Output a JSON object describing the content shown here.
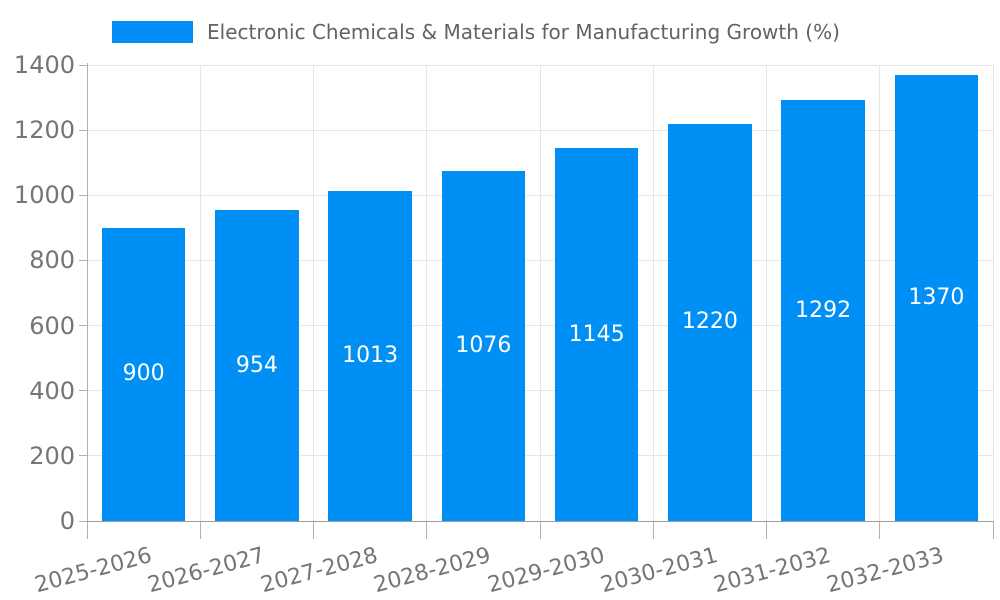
{
  "chart_data": {
    "type": "bar",
    "title": "Electronic Chemicals & Materials for Manufacturing Growth (%)",
    "categories": [
      "2025-2026",
      "2026-2027",
      "2027-2028",
      "2028-2029",
      "2029-2030",
      "2030-2031",
      "2031-2032",
      "2032-2033"
    ],
    "values": [
      900,
      954,
      1013,
      1076,
      1145,
      1220,
      1292,
      1370
    ],
    "value_labels": [
      "900",
      "954",
      "1013",
      "1076",
      "1145",
      "1220",
      "1292",
      "1370"
    ],
    "xlabel": "",
    "ylabel": "",
    "ylim": [
      0,
      1400
    ],
    "yticks": [
      0,
      200,
      400,
      600,
      800,
      1000,
      1200,
      1400
    ],
    "ytick_labels": [
      "0",
      "200",
      "400",
      "600",
      "800",
      "1000",
      "1200",
      "1400"
    ],
    "grid": true,
    "legend_position": "top",
    "colors": {
      "bar": "#0090f5",
      "value_label": "#ffffff",
      "tick_label": "#757575",
      "title": "#636363",
      "gridline": "#e6e6e6",
      "axis_line": "#b0b0b0",
      "baseline": "#9e9e9e"
    }
  }
}
